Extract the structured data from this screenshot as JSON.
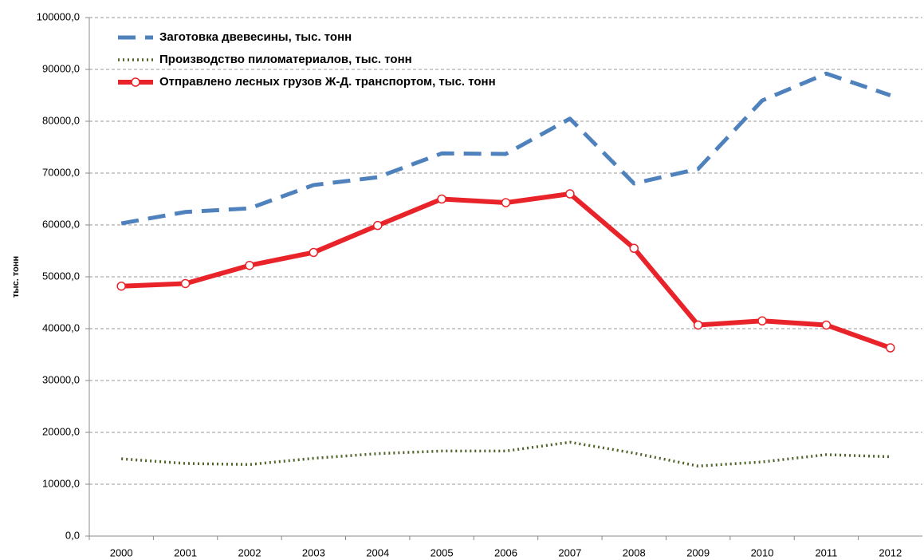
{
  "chart_data": {
    "type": "line",
    "y_label": "тыс. тонн",
    "categories": [
      "2000",
      "2001",
      "2002",
      "2003",
      "2004",
      "2005",
      "2006",
      "2007",
      "2008",
      "2009",
      "2010",
      "2011",
      "2012"
    ],
    "series": [
      {
        "name": "Заготовка двевесины, тыс. тонн",
        "color": "#4f81bd",
        "style": "dashed",
        "values": [
          60300,
          62500,
          63200,
          67700,
          69200,
          73800,
          73700,
          80500,
          68000,
          70800,
          84000,
          89200,
          85000
        ]
      },
      {
        "name": "Производство пиломатериалов, тыс. тонн",
        "color": "#4f6228",
        "style": "dotted",
        "values": [
          14900,
          14000,
          13800,
          15000,
          15900,
          16400,
          16400,
          18100,
          16000,
          13500,
          14300,
          15700,
          15300
        ]
      },
      {
        "name": "Отправлено лесных грузов Ж-Д. транспортом, тыс. тонн",
        "color": "#e8242a",
        "style": "markers",
        "values": [
          48200,
          48700,
          52200,
          54700,
          59900,
          65000,
          64300,
          66000,
          55500,
          40700,
          41500,
          40700,
          36300
        ]
      }
    ],
    "ylim": [
      0,
      100000
    ],
    "yticks": [
      {
        "value": 0,
        "label": "0,0"
      },
      {
        "value": 10000,
        "label": "10000,0"
      },
      {
        "value": 20000,
        "label": "20000,0"
      },
      {
        "value": 30000,
        "label": "30000,0"
      },
      {
        "value": 40000,
        "label": "40000,0"
      },
      {
        "value": 50000,
        "label": "50000,0"
      },
      {
        "value": 60000,
        "label": "60000,0"
      },
      {
        "value": 70000,
        "label": "70000,0"
      },
      {
        "value": 80000,
        "label": "80000,0"
      },
      {
        "value": 90000,
        "label": "90000,0"
      },
      {
        "value": 100000,
        "label": "100000,0"
      }
    ],
    "grid": true,
    "legend": "top-left"
  }
}
